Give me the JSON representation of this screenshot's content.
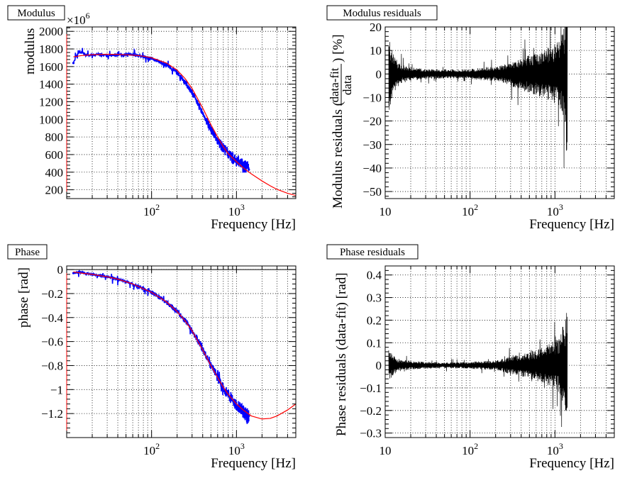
{
  "chart_data": [
    {
      "id": "modulus",
      "type": "line",
      "title": "Modulus",
      "xlabel": "Frequency [Hz]",
      "ylabel": "modulus",
      "y_multiplier": "×10",
      "y_multiplier_exp": "6",
      "xscale": "log",
      "xlim": [
        10,
        5000
      ],
      "ylim": [
        100,
        2050
      ],
      "grid": true,
      "yticks": [
        200,
        400,
        600,
        800,
        1000,
        1200,
        1400,
        1600,
        1800,
        2000
      ],
      "ytick_labels": [
        "200",
        "400",
        "600",
        "800",
        "1000",
        "1200",
        "1400",
        "1600",
        "1800",
        "2000"
      ],
      "xtick_labels": [
        {
          "base": "10",
          "exp": "2",
          "value": 100
        },
        {
          "base": "10",
          "exp": "3",
          "value": 1000
        }
      ],
      "series": [
        {
          "name": "data",
          "color": "#0000ff",
          "x": [
            12,
            13,
            14,
            15,
            17,
            20,
            25,
            30,
            40,
            50,
            60,
            80,
            100,
            130,
            160,
            200,
            250,
            300,
            350,
            400,
            450,
            500,
            600,
            700,
            800,
            900,
            1000,
            1100,
            1200,
            1300,
            1400
          ],
          "y": [
            1640,
            1720,
            1770,
            1760,
            1730,
            1730,
            1740,
            1720,
            1730,
            1740,
            1735,
            1715,
            1690,
            1650,
            1600,
            1530,
            1420,
            1300,
            1180,
            1070,
            970,
            890,
            760,
            670,
            610,
            560,
            530,
            500,
            470,
            450,
            430
          ]
        },
        {
          "name": "fit",
          "color": "#ff0000",
          "x": [
            12,
            15,
            20,
            30,
            40,
            60,
            80,
            100,
            150,
            200,
            250,
            300,
            400,
            500,
            600,
            700,
            800,
            1000,
            1200,
            1500,
            2000,
            2500,
            3000,
            4000,
            5000
          ],
          "y": [
            1710,
            1725,
            1735,
            1740,
            1738,
            1730,
            1718,
            1700,
            1640,
            1560,
            1460,
            1350,
            1130,
            940,
            800,
            690,
            610,
            520,
            450,
            380,
            300,
            245,
            205,
            160,
            135
          ]
        }
      ]
    },
    {
      "id": "modulus-residuals",
      "type": "line",
      "title": "Modulus residuals",
      "xlabel": "Frequency [Hz]",
      "ylabel_left": "Modulus residuals (",
      "ylabel_num": "data-fit",
      "ylabel_den": "data",
      "ylabel_right": ") [%]",
      "xscale": "log",
      "xlim": [
        10,
        5000
      ],
      "ylim": [
        -53,
        20
      ],
      "grid": true,
      "yticks": [
        -50,
        -40,
        -30,
        -20,
        -10,
        0,
        10,
        20
      ],
      "ytick_labels": [
        "−50",
        "−40",
        "−30",
        "−20",
        "−10",
        "0",
        "10",
        "20"
      ],
      "xtick_labels": [
        {
          "base": "10",
          "exp": "",
          "value": 10
        },
        {
          "base": "10",
          "exp": "2",
          "value": 100
        },
        {
          "base": "10",
          "exp": "3",
          "value": 1000
        }
      ],
      "series": [
        {
          "name": "residuals",
          "color": "#000000",
          "x": [
            11,
            12,
            15,
            20,
            30,
            50,
            100,
            150,
            200,
            300,
            400,
            500,
            700,
            900,
            1100,
            1300,
            1400
          ],
          "half_range": [
            18,
            10,
            4,
            3,
            2,
            2,
            2,
            3,
            3,
            5,
            7,
            8,
            10,
            12,
            14,
            20,
            45
          ]
        }
      ]
    },
    {
      "id": "phase",
      "type": "line",
      "title": "Phase",
      "xlabel": "Frequency [Hz]",
      "ylabel": "phase [rad]",
      "xscale": "log",
      "xlim": [
        10,
        5000
      ],
      "ylim": [
        -1.4,
        0.03
      ],
      "grid": true,
      "yticks": [
        -1.2,
        -1.0,
        -0.8,
        -0.6,
        -0.4,
        -0.2,
        0
      ],
      "ytick_labels": [
        "−1.2",
        "−1",
        "−0.8",
        "−0.6",
        "−0.4",
        "−0.2",
        "0"
      ],
      "xtick_labels": [
        {
          "base": "10",
          "exp": "2",
          "value": 100
        },
        {
          "base": "10",
          "exp": "3",
          "value": 1000
        }
      ],
      "series": [
        {
          "name": "data",
          "color": "#0000ff",
          "x": [
            12,
            14,
            16,
            20,
            25,
            30,
            40,
            50,
            70,
            100,
            130,
            160,
            200,
            250,
            300,
            350,
            400,
            500,
            600,
            700,
            800,
            900,
            1000,
            1100,
            1200,
            1300,
            1400
          ],
          "y": [
            -0.03,
            -0.02,
            -0.03,
            -0.04,
            -0.05,
            -0.06,
            -0.08,
            -0.1,
            -0.14,
            -0.19,
            -0.24,
            -0.29,
            -0.35,
            -0.43,
            -0.51,
            -0.59,
            -0.66,
            -0.8,
            -0.9,
            -0.98,
            -1.04,
            -1.09,
            -1.13,
            -1.16,
            -1.19,
            -1.21,
            -1.22
          ]
        },
        {
          "name": "fit",
          "color": "#ff0000",
          "x": [
            12,
            15,
            20,
            30,
            40,
            60,
            80,
            100,
            150,
            200,
            250,
            300,
            400,
            500,
            600,
            700,
            800,
            1000,
            1200,
            1500,
            2000,
            2500,
            3000,
            4000,
            5000
          ],
          "y": [
            -0.02,
            -0.03,
            -0.04,
            -0.06,
            -0.08,
            -0.12,
            -0.16,
            -0.19,
            -0.27,
            -0.35,
            -0.43,
            -0.51,
            -0.67,
            -0.8,
            -0.9,
            -0.98,
            -1.04,
            -1.12,
            -1.17,
            -1.22,
            -1.245,
            -1.24,
            -1.22,
            -1.17,
            -1.12
          ]
        }
      ]
    },
    {
      "id": "phase-residuals",
      "type": "line",
      "title": "Phase residuals",
      "xlabel": "Frequency [Hz]",
      "ylabel": "Phase residuals (data-fit) [rad]",
      "xscale": "log",
      "xlim": [
        10,
        5000
      ],
      "ylim": [
        -0.32,
        0.44
      ],
      "grid": true,
      "yticks": [
        -0.3,
        -0.2,
        -0.1,
        0,
        0.1,
        0.2,
        0.3,
        0.4
      ],
      "ytick_labels": [
        "−0.3",
        "−0.2",
        "−0.1",
        "0",
        "0.1",
        "0.2",
        "0.3",
        "0.4"
      ],
      "xtick_labels": [
        {
          "base": "10",
          "exp": "",
          "value": 10
        },
        {
          "base": "10",
          "exp": "2",
          "value": 100
        },
        {
          "base": "10",
          "exp": "3",
          "value": 1000
        }
      ],
      "series": [
        {
          "name": "residuals",
          "color": "#000000",
          "x": [
            11,
            12,
            15,
            20,
            30,
            50,
            100,
            150,
            200,
            300,
            400,
            500,
            700,
            900,
            1100,
            1300,
            1400
          ],
          "half_range": [
            0.08,
            0.05,
            0.025,
            0.02,
            0.015,
            0.012,
            0.015,
            0.02,
            0.02,
            0.04,
            0.05,
            0.06,
            0.08,
            0.1,
            0.12,
            0.2,
            0.3
          ]
        }
      ]
    }
  ]
}
